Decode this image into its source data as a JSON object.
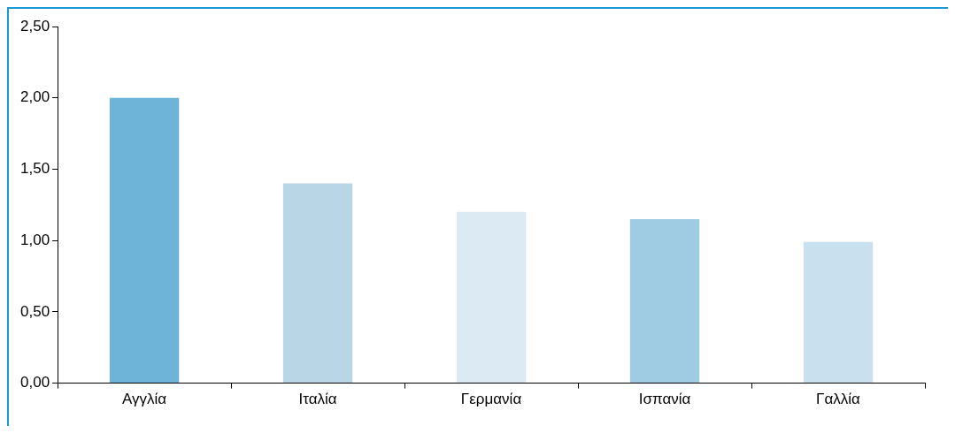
{
  "chart_data": {
    "type": "bar",
    "categories": [
      "Αγγλία",
      "Ιταλία",
      "Γερμανία",
      "Ισπανία",
      "Γαλλία"
    ],
    "values": [
      2.0,
      1.4,
      1.2,
      1.15,
      0.99
    ],
    "colors": [
      "#6eb3d8",
      "#b9d6e6",
      "#dbeaf3",
      "#9fcbe3",
      "#c9e0ee"
    ],
    "ylim": [
      0,
      2.5
    ],
    "yticks": [
      {
        "value": 0,
        "label": "0,00"
      },
      {
        "value": 0.5,
        "label": "0,50"
      },
      {
        "value": 1,
        "label": "1,00"
      },
      {
        "value": 1.5,
        "label": "1,50"
      },
      {
        "value": 2,
        "label": "2,00"
      },
      {
        "value": 2.5,
        "label": "2,50"
      }
    ],
    "grid": false,
    "legend": false
  }
}
